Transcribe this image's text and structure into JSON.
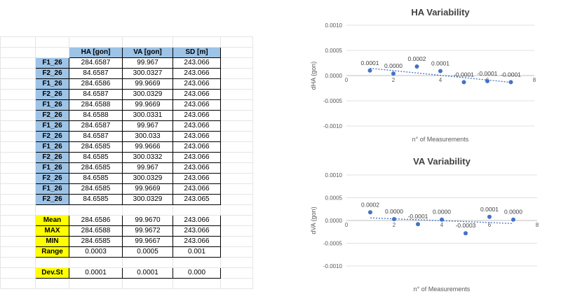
{
  "table": {
    "headers": [
      "HA [gon]",
      "VA [gon]",
      "SD [m]"
    ],
    "rows": [
      {
        "label": "F1_26",
        "ha": "284.6587",
        "va": "99.967",
        "sd": "243.066"
      },
      {
        "label": "F2_26",
        "ha": "84.6587",
        "va": "300.0327",
        "sd": "243.066"
      },
      {
        "label": "F1_26",
        "ha": "284.6586",
        "va": "99.9669",
        "sd": "243.066"
      },
      {
        "label": "F2_26",
        "ha": "84.6587",
        "va": "300.0329",
        "sd": "243.066"
      },
      {
        "label": "F1_26",
        "ha": "284.6588",
        "va": "99.9669",
        "sd": "243.066"
      },
      {
        "label": "F2_26",
        "ha": "84.6588",
        "va": "300.0331",
        "sd": "243.066"
      },
      {
        "label": "F1_26",
        "ha": "284.6587",
        "va": "99.967",
        "sd": "243.066"
      },
      {
        "label": "F2_26",
        "ha": "84.6587",
        "va": "300.033",
        "sd": "243.066"
      },
      {
        "label": "F1_26",
        "ha": "284.6585",
        "va": "99.9666",
        "sd": "243.066"
      },
      {
        "label": "F2_26",
        "ha": "84.6585",
        "va": "300.0332",
        "sd": "243.066"
      },
      {
        "label": "F1_26",
        "ha": "284.6585",
        "va": "99.967",
        "sd": "243.066"
      },
      {
        "label": "F2_26",
        "ha": "84.6585",
        "va": "300.0329",
        "sd": "243.066"
      },
      {
        "label": "F1_26",
        "ha": "284.6585",
        "va": "99.9669",
        "sd": "243.066"
      },
      {
        "label": "F2_26",
        "ha": "84.6585",
        "va": "300.0329",
        "sd": "243.065"
      }
    ],
    "stats": [
      {
        "label": "Mean",
        "ha": "284.6586",
        "va": "99.9670",
        "sd": "243.066"
      },
      {
        "label": "MAX",
        "ha": "284.6588",
        "va": "99.9672",
        "sd": "243.066"
      },
      {
        "label": "MIN",
        "ha": "284.6585",
        "va": "99.9667",
        "sd": "243.066"
      },
      {
        "label": "Range",
        "ha": "0.0003",
        "va": "0.0005",
        "sd": "0.001"
      }
    ],
    "devst": {
      "label": "Dev.St",
      "ha": "0.0001",
      "va": "0.0001",
      "sd": "0.000"
    },
    "colors": {
      "header_fill": "#9dc3e6",
      "stats_fill": "#ffff00"
    }
  },
  "chart_data": [
    {
      "type": "scatter",
      "title": "HA Variability",
      "xlabel": "n° of Measurements",
      "ylabel": "dHA (gon)",
      "xlim": [
        0,
        8
      ],
      "ylim": [
        -0.001,
        0.001
      ],
      "xticks": [
        "0",
        "2",
        "4",
        "6",
        "8"
      ],
      "yticks": [
        "0.0010",
        "0.0005",
        "0.0000",
        "-0.0005",
        "-0.0010"
      ],
      "x": [
        1,
        2,
        3,
        4,
        5,
        6,
        7
      ],
      "y": [
        0.0001,
        4e-05,
        0.00018,
        9e-05,
        -0.00013,
        -0.00011,
        -0.00013
      ],
      "data_labels": [
        "0.0001",
        "0.0000",
        "0.0002",
        "0.0001",
        "-0.0001",
        "-0.0001",
        "-0.0001"
      ],
      "trendline": true,
      "grid": "horizontal",
      "colors": {
        "marker": "#4472c4",
        "trend": "#4472c4"
      }
    },
    {
      "type": "scatter",
      "title": "VA Variability",
      "xlabel": "n° of Measurements",
      "ylabel": "dVA (gon)",
      "xlim": [
        0,
        8
      ],
      "ylim": [
        -0.001,
        0.001
      ],
      "xticks": [
        "0",
        "2",
        "4",
        "6",
        "8"
      ],
      "yticks": [
        "0.0010",
        "0.0005",
        "0.0000",
        "-0.0005",
        "-0.0010"
      ],
      "x": [
        1,
        2,
        3,
        4,
        5,
        6,
        7
      ],
      "y": [
        0.00018,
        3e-05,
        -8e-05,
        2e-05,
        -0.00028,
        8e-05,
        2e-05
      ],
      "data_labels": [
        "0.0002",
        "0.0000",
        "-0.0001",
        "0.0000",
        "-0.0003",
        "0.0001",
        "0.0000"
      ],
      "trendline": true,
      "grid": "horizontal",
      "colors": {
        "marker": "#4472c4",
        "trend": "#4472c4"
      }
    }
  ]
}
